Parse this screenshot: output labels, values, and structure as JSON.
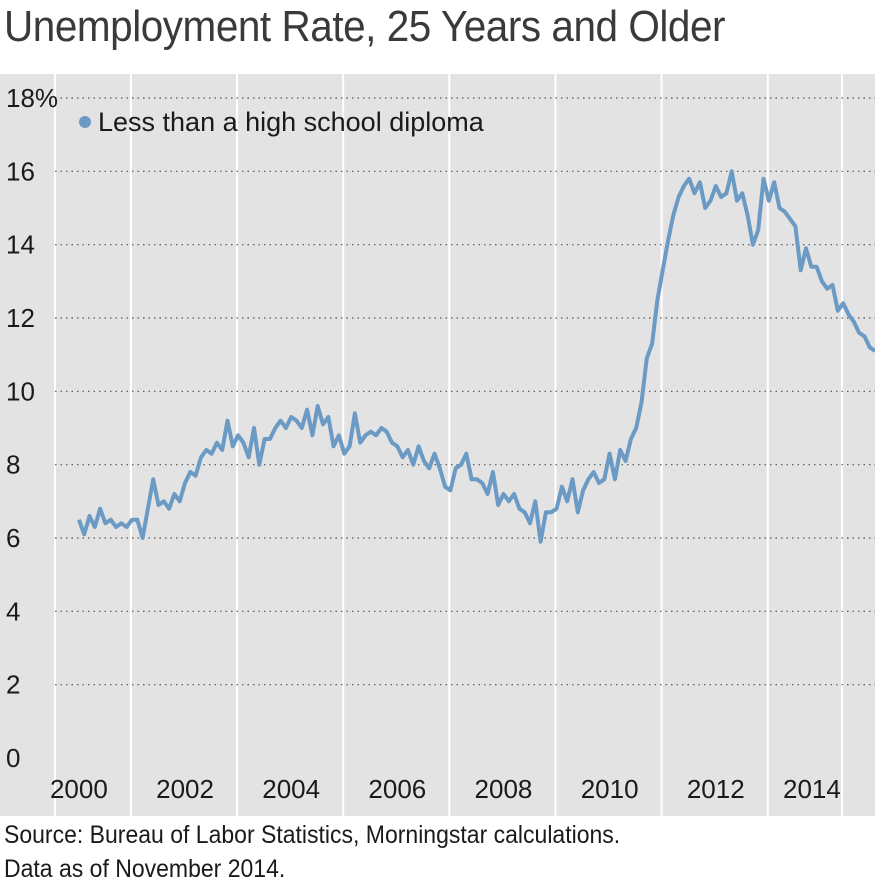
{
  "title": "Unemployment Rate, 25 Years and Older",
  "footnote": {
    "line1": "Source: Bureau of Labor Statistics, Morningstar calculations.",
    "line2": "Data as of November 2014."
  },
  "chart_data": {
    "type": "line",
    "title": "Unemployment Rate, 25 Years and Older",
    "xlabel": "",
    "ylabel": "",
    "xlim": [
      1999.55,
      2015.0
    ],
    "ylim": [
      0,
      18
    ],
    "y_ticks": [
      "0",
      "2",
      "4",
      "6",
      "8",
      "10",
      "12",
      "14",
      "16",
      "18%"
    ],
    "y_tick_values": [
      0,
      2,
      4,
      6,
      8,
      10,
      12,
      14,
      16,
      18
    ],
    "x_ticks": [
      "2000",
      "2002",
      "2004",
      "2006",
      "2008",
      "2010",
      "2012",
      "2014"
    ],
    "x_tick_values": [
      2000,
      2002,
      2004,
      2006,
      2008,
      2010,
      2012,
      2014
    ],
    "grid": "vertical lines white, horizontal dotted",
    "legend_position": "top-left",
    "series": [
      {
        "name": "Less than a high school diploma",
        "color": "#6b9ac4",
        "points": [
          [
            2000.0,
            6.5
          ],
          [
            2000.1,
            6.1
          ],
          [
            2000.2,
            6.6
          ],
          [
            2000.3,
            6.3
          ],
          [
            2000.4,
            6.8
          ],
          [
            2000.5,
            6.4
          ],
          [
            2000.6,
            6.5
          ],
          [
            2000.7,
            6.3
          ],
          [
            2000.8,
            6.4
          ],
          [
            2000.9,
            6.3
          ],
          [
            2001.0,
            6.5
          ],
          [
            2001.1,
            6.5
          ],
          [
            2001.2,
            6.0
          ],
          [
            2001.3,
            6.8
          ],
          [
            2001.4,
            7.6
          ],
          [
            2001.5,
            6.9
          ],
          [
            2001.6,
            7.0
          ],
          [
            2001.7,
            6.8
          ],
          [
            2001.8,
            7.2
          ],
          [
            2001.9,
            7.0
          ],
          [
            2002.0,
            7.5
          ],
          [
            2002.1,
            7.8
          ],
          [
            2002.2,
            7.7
          ],
          [
            2002.3,
            8.2
          ],
          [
            2002.4,
            8.4
          ],
          [
            2002.5,
            8.3
          ],
          [
            2002.6,
            8.6
          ],
          [
            2002.7,
            8.4
          ],
          [
            2002.8,
            9.2
          ],
          [
            2002.9,
            8.5
          ],
          [
            2003.0,
            8.8
          ],
          [
            2003.1,
            8.6
          ],
          [
            2003.2,
            8.2
          ],
          [
            2003.3,
            9.0
          ],
          [
            2003.4,
            8.0
          ],
          [
            2003.5,
            8.7
          ],
          [
            2003.6,
            8.7
          ],
          [
            2003.7,
            9.0
          ],
          [
            2003.8,
            9.2
          ],
          [
            2003.9,
            9.0
          ],
          [
            2004.0,
            9.3
          ],
          [
            2004.1,
            9.2
          ],
          [
            2004.2,
            9.0
          ],
          [
            2004.3,
            9.5
          ],
          [
            2004.4,
            8.8
          ],
          [
            2004.5,
            9.6
          ],
          [
            2004.6,
            9.1
          ],
          [
            2004.7,
            9.3
          ],
          [
            2004.8,
            8.5
          ],
          [
            2004.9,
            8.8
          ],
          [
            2005.0,
            8.3
          ],
          [
            2005.1,
            8.5
          ],
          [
            2005.2,
            9.4
          ],
          [
            2005.3,
            8.6
          ],
          [
            2005.4,
            8.8
          ],
          [
            2005.5,
            8.9
          ],
          [
            2005.6,
            8.8
          ],
          [
            2005.7,
            9.0
          ],
          [
            2005.8,
            8.9
          ],
          [
            2005.9,
            8.6
          ],
          [
            2006.0,
            8.5
          ],
          [
            2006.1,
            8.2
          ],
          [
            2006.2,
            8.4
          ],
          [
            2006.3,
            8.0
          ],
          [
            2006.4,
            8.5
          ],
          [
            2006.5,
            8.1
          ],
          [
            2006.6,
            7.9
          ],
          [
            2006.7,
            8.3
          ],
          [
            2006.8,
            7.9
          ],
          [
            2006.9,
            7.4
          ],
          [
            2007.0,
            7.3
          ],
          [
            2007.1,
            7.9
          ],
          [
            2007.2,
            8.0
          ],
          [
            2007.3,
            8.3
          ],
          [
            2007.4,
            7.6
          ],
          [
            2007.5,
            7.6
          ],
          [
            2007.6,
            7.5
          ],
          [
            2007.7,
            7.2
          ],
          [
            2007.8,
            7.8
          ],
          [
            2007.9,
            6.9
          ],
          [
            2008.0,
            7.2
          ],
          [
            2008.1,
            7.0
          ],
          [
            2008.2,
            7.2
          ],
          [
            2008.3,
            6.8
          ],
          [
            2008.4,
            6.7
          ],
          [
            2008.5,
            6.4
          ],
          [
            2008.6,
            7.0
          ],
          [
            2008.7,
            5.9
          ],
          [
            2008.8,
            6.7
          ],
          [
            2008.9,
            6.7
          ],
          [
            2009.0,
            6.8
          ],
          [
            2009.1,
            7.4
          ],
          [
            2009.2,
            7.0
          ],
          [
            2009.3,
            7.6
          ],
          [
            2009.4,
            6.7
          ],
          [
            2009.5,
            7.3
          ],
          [
            2009.6,
            7.6
          ],
          [
            2009.7,
            7.8
          ],
          [
            2009.8,
            7.5
          ],
          [
            2009.9,
            7.6
          ],
          [
            2010.0,
            8.3
          ],
          [
            2010.1,
            7.6
          ],
          [
            2010.2,
            8.4
          ],
          [
            2010.3,
            8.1
          ],
          [
            2010.4,
            8.7
          ],
          [
            2010.5,
            9.0
          ],
          [
            2010.6,
            9.7
          ],
          [
            2010.7,
            10.9
          ],
          [
            2010.8,
            11.3
          ],
          [
            2010.9,
            12.5
          ],
          [
            2011.0,
            13.3
          ],
          [
            2011.1,
            14.1
          ],
          [
            2011.2,
            14.8
          ],
          [
            2011.3,
            15.3
          ],
          [
            2011.4,
            15.6
          ],
          [
            2011.5,
            15.8
          ],
          [
            2011.6,
            15.4
          ],
          [
            2011.7,
            15.7
          ],
          [
            2011.8,
            15.0
          ],
          [
            2011.9,
            15.2
          ],
          [
            2012.0,
            15.6
          ],
          [
            2012.1,
            15.3
          ],
          [
            2012.2,
            15.4
          ],
          [
            2012.3,
            16.0
          ],
          [
            2012.4,
            15.2
          ],
          [
            2012.5,
            15.4
          ],
          [
            2012.6,
            14.8
          ],
          [
            2012.7,
            14.0
          ],
          [
            2012.8,
            14.4
          ],
          [
            2012.9,
            15.8
          ],
          [
            2013.0,
            15.2
          ],
          [
            2013.1,
            15.7
          ],
          [
            2013.2,
            15.0
          ],
          [
            2013.3,
            14.9
          ],
          [
            2013.4,
            14.7
          ],
          [
            2013.5,
            14.5
          ],
          [
            2013.6,
            13.3
          ],
          [
            2013.7,
            13.9
          ],
          [
            2013.8,
            13.4
          ],
          [
            2013.9,
            13.4
          ],
          [
            2014.0,
            13.0
          ],
          [
            2014.1,
            12.8
          ],
          [
            2014.2,
            12.9
          ],
          [
            2014.3,
            12.2
          ],
          [
            2014.4,
            12.4
          ],
          [
            2014.5,
            12.1
          ],
          [
            2014.6,
            11.9
          ],
          [
            2014.7,
            11.6
          ],
          [
            2014.8,
            11.5
          ],
          [
            2014.9,
            11.2
          ],
          [
            2015.0,
            11.1
          ]
        ]
      }
    ]
  }
}
